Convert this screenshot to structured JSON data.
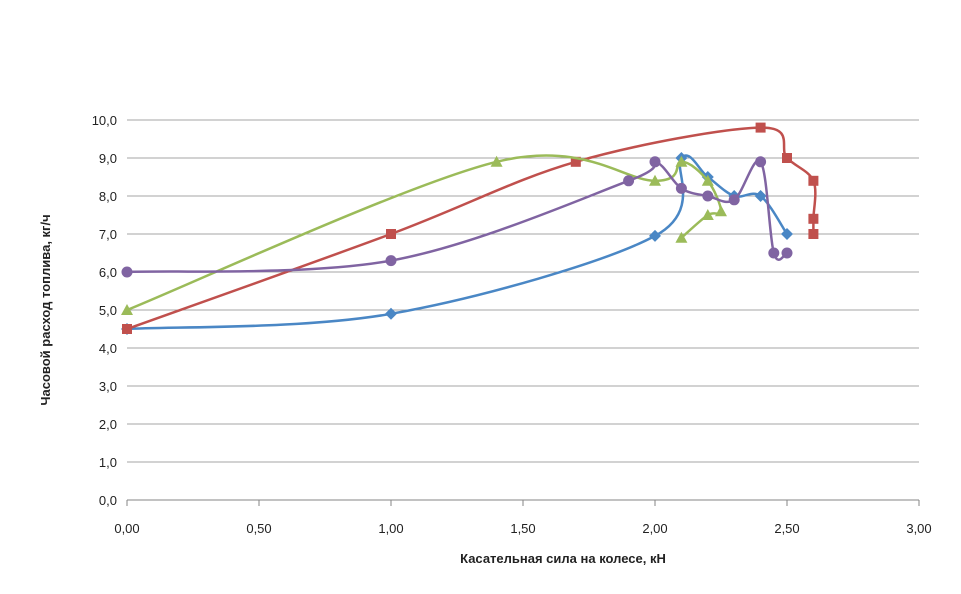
{
  "chart_data": {
    "type": "line",
    "xlabel": "Касательная сила на колесе, кН",
    "ylabel": "Часовой расход  топлива, кг/ч",
    "xlim": [
      0,
      3
    ],
    "ylim": [
      0,
      10
    ],
    "x_ticks": [
      "0,00",
      "0,50",
      "1,00",
      "1,50",
      "2,00",
      "2,50",
      "3,00"
    ],
    "y_ticks": [
      "0,0",
      "1,0",
      "2,0",
      "3,0",
      "4,0",
      "5,0",
      "6,0",
      "7,0",
      "8,0",
      "9,0",
      "10,0"
    ],
    "grid": "horizontal",
    "legend": "none",
    "series": [
      {
        "color": "#4a87c5",
        "marker": "diamond",
        "points": [
          [
            0,
            4.5
          ],
          [
            1.0,
            4.9
          ],
          [
            2.0,
            6.95
          ],
          [
            2.1,
            9.0
          ],
          [
            2.2,
            8.5
          ],
          [
            2.3,
            8.0
          ],
          [
            2.4,
            8.0
          ],
          [
            2.5,
            7.0
          ]
        ]
      },
      {
        "color": "#c0504d",
        "marker": "square",
        "points": [
          [
            0,
            4.5
          ],
          [
            1.0,
            7.0
          ],
          [
            1.7,
            8.9
          ],
          [
            2.4,
            9.8
          ],
          [
            2.5,
            9.0
          ],
          [
            2.6,
            8.4
          ],
          [
            2.6,
            7.4
          ],
          [
            2.6,
            7.0
          ]
        ]
      },
      {
        "color": "#9bbb59",
        "marker": "triangle",
        "points": [
          [
            0,
            5.0
          ],
          [
            1.4,
            8.9
          ],
          [
            2.0,
            8.4
          ],
          [
            2.1,
            8.9
          ],
          [
            2.2,
            8.4
          ],
          [
            2.25,
            7.6
          ],
          [
            2.2,
            7.5
          ],
          [
            2.1,
            6.9
          ]
        ]
      },
      {
        "color": "#8064a2",
        "marker": "circle",
        "points": [
          [
            0,
            6.0
          ],
          [
            1.0,
            6.3
          ],
          [
            1.9,
            8.4
          ],
          [
            2.0,
            8.9
          ],
          [
            2.1,
            8.2
          ],
          [
            2.2,
            8.0
          ],
          [
            2.3,
            7.9
          ],
          [
            2.4,
            8.9
          ],
          [
            2.45,
            6.5
          ],
          [
            2.5,
            6.5
          ]
        ]
      }
    ]
  }
}
